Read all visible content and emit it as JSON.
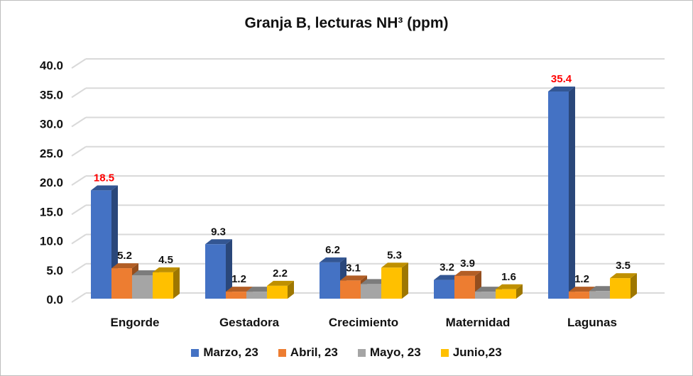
{
  "chart_data": {
    "type": "bar",
    "title": "Granja B, lecturas NH³ (ppm)",
    "categories": [
      "Engorde",
      "Gestadora",
      "Crecimiento",
      "Maternidad",
      "Lagunas"
    ],
    "series": [
      {
        "name": "Marzo, 23",
        "color": "#4472C4",
        "values": [
          18.5,
          9.3,
          6.2,
          3.2,
          35.4
        ],
        "labels": [
          "18.5",
          "9.3",
          "6.2",
          "3.2",
          "35.4"
        ]
      },
      {
        "name": "Abril, 23",
        "color": "#ED7D31",
        "values": [
          5.2,
          1.2,
          3.1,
          3.9,
          1.2
        ],
        "labels": [
          "5.2",
          "1.2",
          "3.1",
          "3.9",
          "1.2"
        ]
      },
      {
        "name": "Mayo, 23",
        "color": "#A5A5A5",
        "values": [
          4.0,
          1.2,
          2.5,
          1.2,
          1.3
        ],
        "labels": [
          null,
          null,
          null,
          null,
          null
        ]
      },
      {
        "name": "Junio,23",
        "color": "#FFC000",
        "values": [
          4.5,
          2.2,
          5.3,
          1.6,
          3.5
        ],
        "labels": [
          "4.5",
          "2.2",
          "5.3",
          "1.6",
          "3.5"
        ]
      }
    ],
    "highlight_labels": {
      "Marzo, 23": {
        "Engorde": "#FF0000",
        "Lagunas": "#FF0000"
      }
    },
    "yticks": [
      "0.0",
      "5.0",
      "10.0",
      "15.0",
      "20.0",
      "25.0",
      "30.0",
      "35.0",
      "40.0"
    ],
    "ylim": [
      0,
      40
    ],
    "grid": true,
    "legend": "bottom",
    "xlabel": "",
    "ylabel": ""
  }
}
